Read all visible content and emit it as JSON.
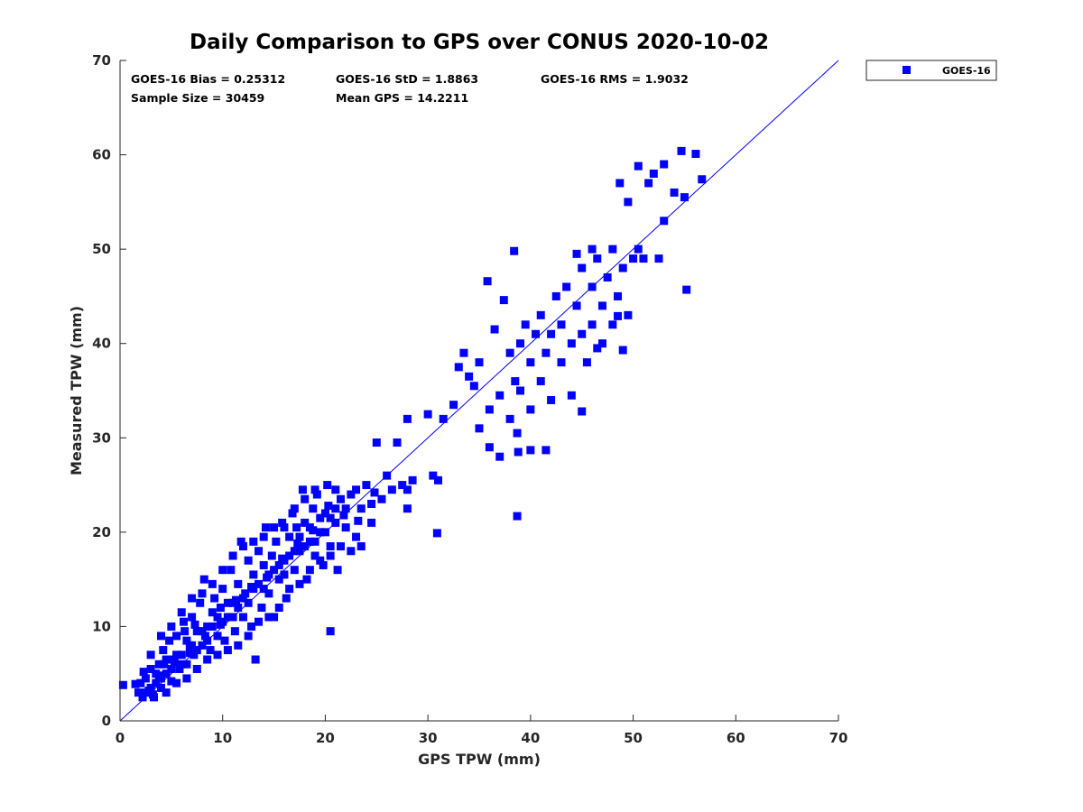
{
  "chart_data": {
    "type": "scatter",
    "title": "Daily Comparison to GPS over CONUS 2020-10-02",
    "xlabel": "GPS TPW (mm)",
    "ylabel": "Measured TPW (mm)",
    "xlim": [
      0,
      70
    ],
    "ylim": [
      0,
      70
    ],
    "xticks": [
      "0",
      "10",
      "20",
      "30",
      "40",
      "50",
      "60",
      "70"
    ],
    "yticks": [
      "0",
      "10",
      "20",
      "30",
      "40",
      "50",
      "60",
      "70"
    ],
    "grid": false,
    "legend": {
      "position": "outside-top-right",
      "entries": [
        "GOES-16"
      ]
    },
    "reference_line": {
      "name": "1:1 line",
      "from": [
        0,
        0
      ],
      "to": [
        70,
        70
      ]
    },
    "annotations": [
      "GOES-16 Bias = 0.25312",
      "GOES-16 StD = 1.8863",
      "GOES-16 RMS = 1.9032",
      "Sample Size = 30459",
      "Mean GPS = 14.2211"
    ],
    "series": [
      {
        "name": "GOES-16",
        "color": "#0000ff",
        "marker": "square",
        "points": [
          [
            0.3,
            3.8
          ],
          [
            1.5,
            3.9
          ],
          [
            1.8,
            3.0
          ],
          [
            2.2,
            2.5
          ],
          [
            2.5,
            4.5
          ],
          [
            2.8,
            3.2
          ],
          [
            3.0,
            5.5
          ],
          [
            3.2,
            2.8
          ],
          [
            3.5,
            4.0
          ],
          [
            3.8,
            6.0
          ],
          [
            4.0,
            3.5
          ],
          [
            4.2,
            7.5
          ],
          [
            4.5,
            5.0
          ],
          [
            4.8,
            8.5
          ],
          [
            5.0,
            4.2
          ],
          [
            5.2,
            6.5
          ],
          [
            5.5,
            9.0
          ],
          [
            5.8,
            5.5
          ],
          [
            6.0,
            7.0
          ],
          [
            6.2,
            10.5
          ],
          [
            6.5,
            6.0
          ],
          [
            6.8,
            8.0
          ],
          [
            7.0,
            11.0
          ],
          [
            7.2,
            7.0
          ],
          [
            7.5,
            9.5
          ],
          [
            7.8,
            12.5
          ],
          [
            8.0,
            8.0
          ],
          [
            8.2,
            15.0
          ],
          [
            8.5,
            10.0
          ],
          [
            8.8,
            7.5
          ],
          [
            9.0,
            11.5
          ],
          [
            9.2,
            13.0
          ],
          [
            9.5,
            9.0
          ],
          [
            9.8,
            12.0
          ],
          [
            10.0,
            14.0
          ],
          [
            10.2,
            8.5
          ],
          [
            10.5,
            11.0
          ],
          [
            10.8,
            16.0
          ],
          [
            11.0,
            12.5
          ],
          [
            11.2,
            9.5
          ],
          [
            11.5,
            14.5
          ],
          [
            11.8,
            19.0
          ],
          [
            12.0,
            11.0
          ],
          [
            12.2,
            13.5
          ],
          [
            12.5,
            17.0
          ],
          [
            12.8,
            10.0
          ],
          [
            13.0,
            15.5
          ],
          [
            13.2,
            6.5
          ],
          [
            13.5,
            18.0
          ],
          [
            13.8,
            12.0
          ],
          [
            14.0,
            16.5
          ],
          [
            14.2,
            20.5
          ],
          [
            14.5,
            13.5
          ],
          [
            14.8,
            17.5
          ],
          [
            15.0,
            11.0
          ],
          [
            15.2,
            19.0
          ],
          [
            15.5,
            15.0
          ],
          [
            15.8,
            21.0
          ],
          [
            16.0,
            17.0
          ],
          [
            16.2,
            13.0
          ],
          [
            16.5,
            19.5
          ],
          [
            16.8,
            22.0
          ],
          [
            17.0,
            16.0
          ],
          [
            17.2,
            20.5
          ],
          [
            17.5,
            18.0
          ],
          [
            17.8,
            24.5
          ],
          [
            18.0,
            21.0
          ],
          [
            18.2,
            15.0
          ],
          [
            18.5,
            19.0
          ],
          [
            18.8,
            22.5
          ],
          [
            19.0,
            17.5
          ],
          [
            19.2,
            24.0
          ],
          [
            19.5,
            20.0
          ],
          [
            19.8,
            16.5
          ],
          [
            20.0,
            22.0
          ],
          [
            20.2,
            25.0
          ],
          [
            20.5,
            18.5
          ],
          [
            20.5,
            9.5
          ],
          [
            21.0,
            21.0
          ],
          [
            21.2,
            16.0
          ],
          [
            21.5,
            23.5
          ],
          [
            22.0,
            20.5
          ],
          [
            22.5,
            24.0
          ],
          [
            23.0,
            19.5
          ],
          [
            23.5,
            22.5
          ],
          [
            24.0,
            25.0
          ],
          [
            24.5,
            21.0
          ],
          [
            25.0,
            29.5
          ],
          [
            25.5,
            23.5
          ],
          [
            26.0,
            26.0
          ],
          [
            26.5,
            24.5
          ],
          [
            27.0,
            29.5
          ],
          [
            27.5,
            25.0
          ],
          [
            28.0,
            24.5
          ],
          [
            28.5,
            25.5
          ],
          [
            28.0,
            32.0
          ],
          [
            28.0,
            22.5
          ],
          [
            30.5,
            26.0
          ],
          [
            31.0,
            25.5
          ],
          [
            30.0,
            32.5
          ],
          [
            31.5,
            32.0
          ],
          [
            32.5,
            33.5
          ],
          [
            33.0,
            37.5
          ],
          [
            33.5,
            39.0
          ],
          [
            34.0,
            36.5
          ],
          [
            35.0,
            38.0
          ],
          [
            35.0,
            31.0
          ],
          [
            36.0,
            29.0
          ],
          [
            36.0,
            33.0
          ],
          [
            37.0,
            28.0
          ],
          [
            37.0,
            34.5
          ],
          [
            38.0,
            39.0
          ],
          [
            38.0,
            32.0
          ],
          [
            38.5,
            36.0
          ],
          [
            39.0,
            40.0
          ],
          [
            39.0,
            35.0
          ],
          [
            39.5,
            42.0
          ],
          [
            40.0,
            38.0
          ],
          [
            40.0,
            33.0
          ],
          [
            40.5,
            41.0
          ],
          [
            41.0,
            36.0
          ],
          [
            41.0,
            43.0
          ],
          [
            41.5,
            39.0
          ],
          [
            42.0,
            41.0
          ],
          [
            42.0,
            34.0
          ],
          [
            42.5,
            45.0
          ],
          [
            43.0,
            38.0
          ],
          [
            43.0,
            42.0
          ],
          [
            43.5,
            46.0
          ],
          [
            44.0,
            40.0
          ],
          [
            44.0,
            34.5
          ],
          [
            44.5,
            44.0
          ],
          [
            45.0,
            48.0
          ],
          [
            45.0,
            41.0
          ],
          [
            45.5,
            38.0
          ],
          [
            46.0,
            46.0
          ],
          [
            46.0,
            42.0
          ],
          [
            46.5,
            49.0
          ],
          [
            47.0,
            44.0
          ],
          [
            47.0,
            40.0
          ],
          [
            47.5,
            47.0
          ],
          [
            48.0,
            50.0
          ],
          [
            48.0,
            42.0
          ],
          [
            48.5,
            45.0
          ],
          [
            49.0,
            48.0
          ],
          [
            49.5,
            43.0
          ],
          [
            50.0,
            49.0
          ],
          [
            50.5,
            50.0
          ],
          [
            51.0,
            49.0
          ],
          [
            51.5,
            57.0
          ],
          [
            52.0,
            58.0
          ],
          [
            53.0,
            59.0
          ],
          [
            53.0,
            53.0
          ],
          [
            54.0,
            56.0
          ],
          [
            55.0,
            55.5
          ],
          [
            49.5,
            55.0
          ],
          [
            50.5,
            58.8
          ],
          [
            48.7,
            57.0
          ],
          [
            48.5,
            42.9
          ],
          [
            40.0,
            28.7
          ],
          [
            38.7,
            30.5
          ],
          [
            54.7,
            60.4
          ],
          [
            56.1,
            60.1
          ],
          [
            56.7,
            57.4
          ],
          [
            55.2,
            45.7
          ],
          [
            38.7,
            21.7
          ],
          [
            30.9,
            19.9
          ],
          [
            38.4,
            49.8
          ],
          [
            35.8,
            46.6
          ],
          [
            37.4,
            44.6
          ],
          [
            36.5,
            41.5
          ],
          [
            34.5,
            35.5
          ],
          [
            38.8,
            28.5
          ],
          [
            41.5,
            28.7
          ],
          [
            45.0,
            32.8
          ],
          [
            46.5,
            39.5
          ],
          [
            49.0,
            39.3
          ],
          [
            44.5,
            49.5
          ],
          [
            46.0,
            50.0
          ],
          [
            52.5,
            49.0
          ],
          [
            2.0,
            4.0
          ],
          [
            2.5,
            3.0
          ],
          [
            3.0,
            3.5
          ],
          [
            3.5,
            5.0
          ],
          [
            4.0,
            4.5
          ],
          [
            4.5,
            6.5
          ],
          [
            5.0,
            5.5
          ],
          [
            5.5,
            7.0
          ],
          [
            6.0,
            6.0
          ],
          [
            6.5,
            8.5
          ],
          [
            7.0,
            8.0
          ],
          [
            7.5,
            7.5
          ],
          [
            8.0,
            9.5
          ],
          [
            8.5,
            8.5
          ],
          [
            9.0,
            10.0
          ],
          [
            9.5,
            11.0
          ],
          [
            10.0,
            10.5
          ],
          [
            10.5,
            12.5
          ],
          [
            11.0,
            11.0
          ],
          [
            11.5,
            12.0
          ],
          [
            12.0,
            13.0
          ],
          [
            12.5,
            12.5
          ],
          [
            13.0,
            14.0
          ],
          [
            13.5,
            14.5
          ],
          [
            14.0,
            14.0
          ],
          [
            14.5,
            15.5
          ],
          [
            15.0,
            16.0
          ],
          [
            15.5,
            16.5
          ],
          [
            16.0,
            15.5
          ],
          [
            16.5,
            17.5
          ],
          [
            17.0,
            18.0
          ],
          [
            17.5,
            19.5
          ],
          [
            18.0,
            18.5
          ],
          [
            18.5,
            20.5
          ],
          [
            19.0,
            19.0
          ],
          [
            19.5,
            21.5
          ],
          [
            20.0,
            20.0
          ],
          [
            20.5,
            21.5
          ],
          [
            21.0,
            22.5
          ],
          [
            22.0,
            22.5
          ],
          [
            3.0,
            7.0
          ],
          [
            4.0,
            9.0
          ],
          [
            5.0,
            10.0
          ],
          [
            6.0,
            11.5
          ],
          [
            7.0,
            13.0
          ],
          [
            8.0,
            13.5
          ],
          [
            9.0,
            14.5
          ],
          [
            10.0,
            16.0
          ],
          [
            11.0,
            17.5
          ],
          [
            12.0,
            18.5
          ],
          [
            13.0,
            19.0
          ],
          [
            14.0,
            19.5
          ],
          [
            15.0,
            20.5
          ],
          [
            16.0,
            20.5
          ],
          [
            17.0,
            22.5
          ],
          [
            18.0,
            23.5
          ],
          [
            19.0,
            24.5
          ],
          [
            21.0,
            24.5
          ],
          [
            23.0,
            24.5
          ],
          [
            24.5,
            23.0
          ],
          [
            4.5,
            3.0
          ],
          [
            5.5,
            4.0
          ],
          [
            6.5,
            4.5
          ],
          [
            7.5,
            5.5
          ],
          [
            8.5,
            6.5
          ],
          [
            9.5,
            7.0
          ],
          [
            10.5,
            7.5
          ],
          [
            11.5,
            8.0
          ],
          [
            12.5,
            9.0
          ],
          [
            13.5,
            10.5
          ],
          [
            14.5,
            11.0
          ],
          [
            15.5,
            12.0
          ],
          [
            16.5,
            14.0
          ],
          [
            17.5,
            14.5
          ],
          [
            18.5,
            16.0
          ],
          [
            19.5,
            17.0
          ],
          [
            20.5,
            17.5
          ],
          [
            21.5,
            18.5
          ],
          [
            22.5,
            18.0
          ],
          [
            23.5,
            18.5
          ],
          [
            3.8,
            4.8
          ],
          [
            5.3,
            6.2
          ],
          [
            6.8,
            7.2
          ],
          [
            8.3,
            9.0
          ],
          [
            9.8,
            10.2
          ],
          [
            11.3,
            12.8
          ],
          [
            12.8,
            14.2
          ],
          [
            14.3,
            15.2
          ],
          [
            15.8,
            17.2
          ],
          [
            17.3,
            18.8
          ],
          [
            18.8,
            20.2
          ],
          [
            20.3,
            22.8
          ],
          [
            21.8,
            21.8
          ],
          [
            23.2,
            21.2
          ],
          [
            24.8,
            24.2
          ],
          [
            2.3,
            5.2
          ],
          [
            3.3,
            2.5
          ],
          [
            4.3,
            6.0
          ],
          [
            6.3,
            9.5
          ],
          [
            7.3,
            10.2
          ]
        ]
      }
    ]
  }
}
